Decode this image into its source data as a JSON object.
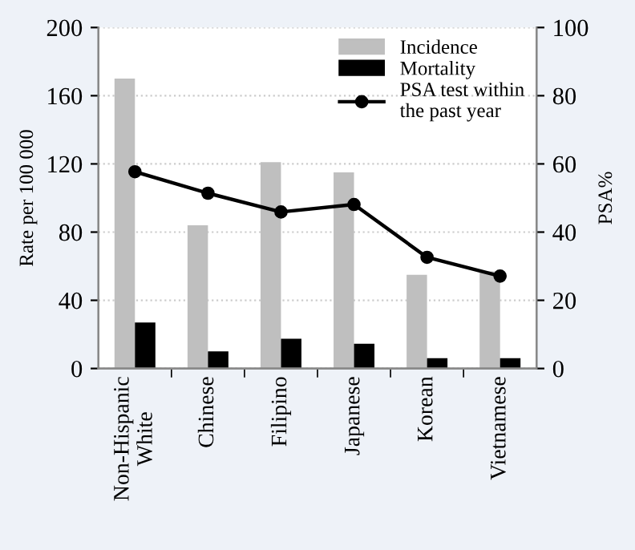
{
  "chart_data": {
    "type": "bar",
    "categories": [
      "Non-Hispanic\nWhite",
      "Chinese",
      "Filipino",
      "Japanese",
      "Korean",
      "Vietnamese"
    ],
    "ylabel": "Rate per 100 000",
    "y2label": "PSA%",
    "series": [
      {
        "name": "Incidence",
        "color": "#bfbfbf",
        "values": [
          170,
          84,
          121,
          115,
          55,
          57
        ]
      },
      {
        "name": "Mortality",
        "color": "#000000",
        "values": [
          27,
          10,
          17.5,
          14.5,
          6,
          6
        ]
      },
      {
        "name": "PSA test within\nthe past year",
        "type": "line",
        "axis": "y2",
        "color": "#000000",
        "marker": "circle",
        "values": [
          57.7,
          51.4,
          45.9,
          48.1,
          32.6,
          27.1
        ]
      }
    ],
    "ylim": [
      0,
      200
    ],
    "yticks": [
      0,
      40,
      80,
      120,
      160,
      200
    ],
    "y2lim": [
      0,
      100
    ],
    "y2ticks": [
      0,
      20,
      40,
      60,
      80,
      100
    ],
    "grid": "y",
    "legend": "top right"
  }
}
